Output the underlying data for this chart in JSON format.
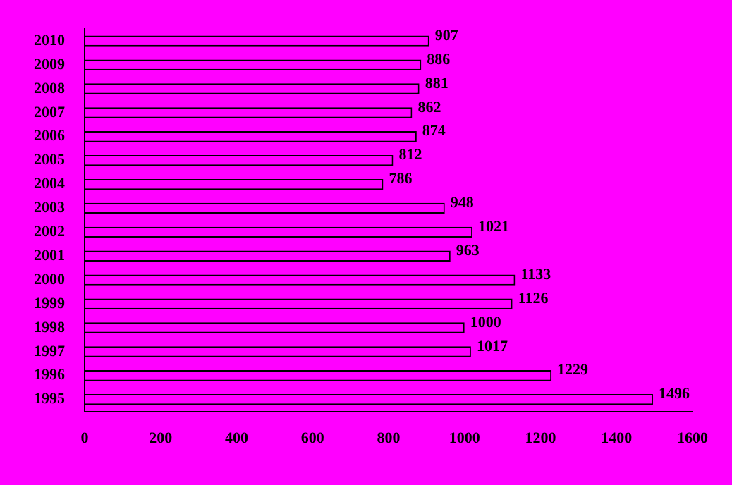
{
  "chart_data": {
    "type": "bar",
    "orientation": "horizontal",
    "categories": [
      "2010",
      "2009",
      "2008",
      "2007",
      "2006",
      "2005",
      "2004",
      "2003",
      "2002",
      "2001",
      "2000",
      "1999",
      "1998",
      "1997",
      "1996",
      "1995"
    ],
    "values": [
      907,
      886,
      881,
      862,
      874,
      812,
      786,
      948,
      1021,
      963,
      1133,
      1126,
      1000,
      1017,
      1229,
      1496
    ],
    "color": "#ff00ff",
    "xlim": [
      0,
      1600
    ],
    "xticks": [
      0,
      200,
      400,
      600,
      800,
      1000,
      1200,
      1400,
      1600
    ],
    "grid": false,
    "legend": false,
    "data_labels": true
  }
}
